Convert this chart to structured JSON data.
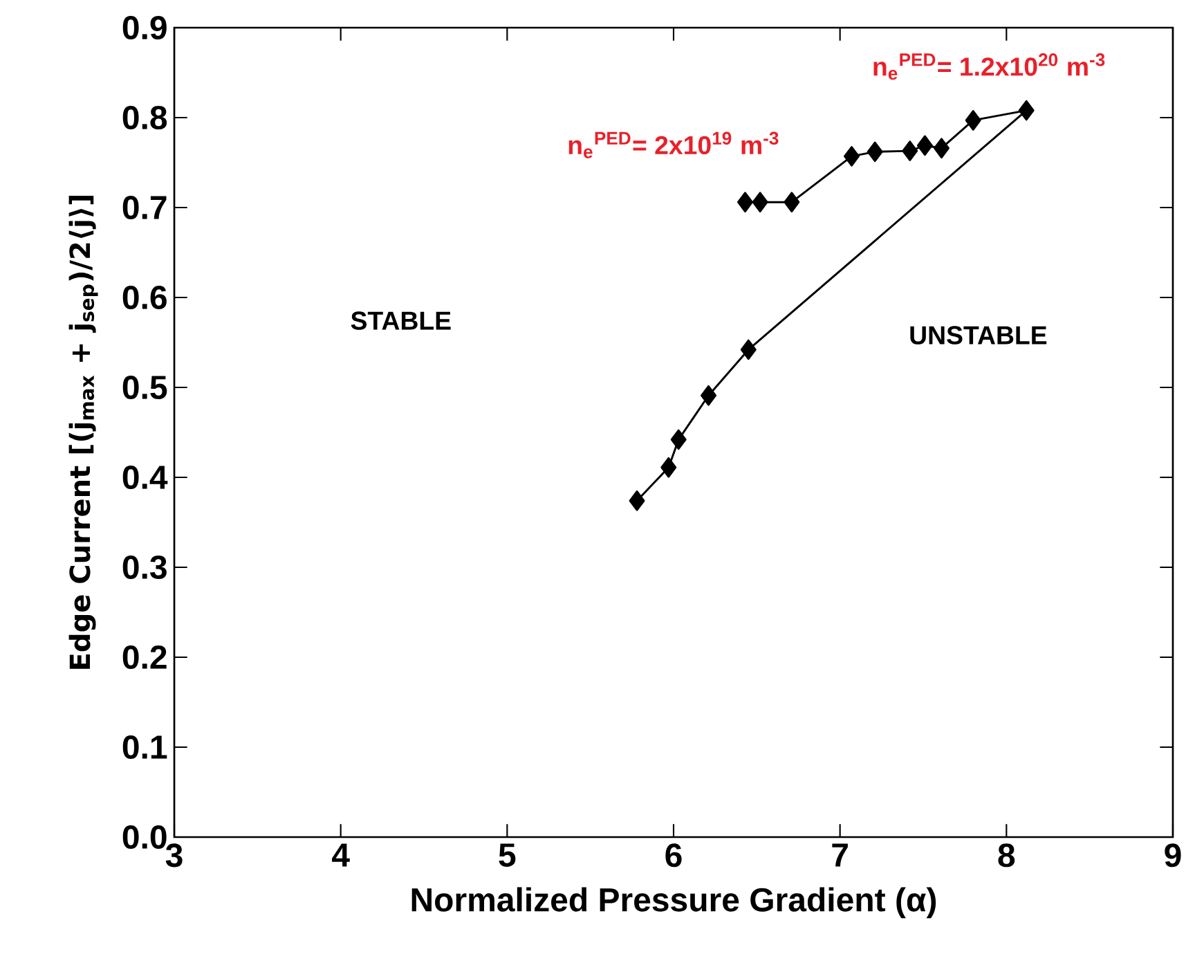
{
  "chart_data": {
    "type": "line",
    "xlabel": "Normalized Pressure Gradient (α)",
    "ylabel": "Edge Current [(j$_{max}$ + j$_{sep}$)/2⟨j⟩]",
    "xlim": [
      3,
      9
    ],
    "ylim": [
      0,
      0.9
    ],
    "xticks": [
      3,
      4,
      5,
      6,
      7,
      8,
      9
    ],
    "yticks": [
      {
        "value": 0,
        "label": "0.0"
      },
      0.1,
      0.2,
      0.3,
      0.4,
      0.5,
      0.6,
      0.7,
      0.8,
      0.9
    ],
    "marker": "diamond",
    "line_style": "solid",
    "series": [
      {
        "color": "#000000",
        "x": [
          5.78,
          5.97,
          6.03,
          6.21,
          6.45,
          8.12,
          7.8,
          7.61,
          7.51,
          7.42,
          7.21,
          7.07,
          6.71,
          6.52,
          6.43
        ],
        "values": [
          0.374,
          0.411,
          0.442,
          0.491,
          0.542,
          0.808,
          0.797,
          0.766,
          0.769,
          0.763,
          0.762,
          0.757,
          0.706,
          0.706,
          0.706
        ]
      }
    ],
    "annotations": [
      "STABLE",
      "UNSTABLE",
      "n$_{e}$$^{PED}$= 2x10$^{19}$ m$^{-3}$",
      "n$_{e}$$^{PED}$= 1.2x10$^{20}$ m$^{-3}$"
    ]
  }
}
